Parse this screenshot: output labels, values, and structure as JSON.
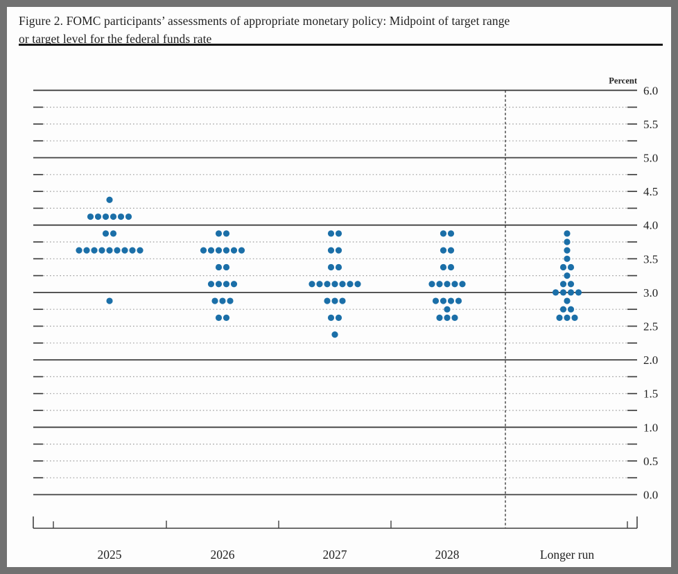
{
  "figure": {
    "title_line1": "Figure 2. FOMC participants’ assessments of appropriate monetary policy: Midpoint of target range",
    "title_line2": "or target level for the federal funds rate"
  },
  "colors": {
    "dot": "#1b6fa8",
    "solid_line": "#3f3f3f",
    "dashed_line": "#9b9b9b",
    "separator_line": "#2f2f2f",
    "text": "#1f1f1f",
    "frame": "#717171",
    "page": "#fdfdfd"
  },
  "chart_data": {
    "type": "scatter",
    "title": "Figure 2. FOMC participants’ assessments of appropriate monetary policy: Midpoint of target range or target level for the federal funds rate",
    "ylabel": "Percent",
    "ylim": [
      0.0,
      6.0
    ],
    "grid": "solid lines at each integer percent; dashed lines at each 0.25 increment; tick labels every 0.5 on right side",
    "legend_position": "none",
    "y_axis": {
      "unit": "Percent",
      "tick_labels": [
        "6.0",
        "5.5",
        "5.0",
        "4.5",
        "4.0",
        "3.5",
        "3.0",
        "2.5",
        "2.0",
        "1.5",
        "1.0",
        "0.5",
        "0.0"
      ]
    },
    "categories": [
      "2025",
      "2026",
      "2027",
      "2028",
      "Longer run"
    ],
    "series": [
      {
        "category": "2025",
        "dots": [
          {
            "rate": 4.375,
            "count": 1
          },
          {
            "rate": 4.125,
            "count": 6
          },
          {
            "rate": 3.875,
            "count": 2
          },
          {
            "rate": 3.625,
            "count": 9
          },
          {
            "rate": 2.875,
            "count": 1
          }
        ]
      },
      {
        "category": "2026",
        "dots": [
          {
            "rate": 3.875,
            "count": 2
          },
          {
            "rate": 3.625,
            "count": 6
          },
          {
            "rate": 3.375,
            "count": 2
          },
          {
            "rate": 3.125,
            "count": 4
          },
          {
            "rate": 2.875,
            "count": 3
          },
          {
            "rate": 2.625,
            "count": 2
          }
        ]
      },
      {
        "category": "2027",
        "dots": [
          {
            "rate": 3.875,
            "count": 2
          },
          {
            "rate": 3.625,
            "count": 2
          },
          {
            "rate": 3.375,
            "count": 2
          },
          {
            "rate": 3.125,
            "count": 7
          },
          {
            "rate": 2.875,
            "count": 3
          },
          {
            "rate": 2.625,
            "count": 2
          },
          {
            "rate": 2.375,
            "count": 1
          }
        ]
      },
      {
        "category": "2028",
        "dots": [
          {
            "rate": 3.875,
            "count": 2
          },
          {
            "rate": 3.625,
            "count": 2
          },
          {
            "rate": 3.375,
            "count": 2
          },
          {
            "rate": 3.125,
            "count": 5
          },
          {
            "rate": 2.875,
            "count": 4
          },
          {
            "rate": 2.75,
            "count": 1
          },
          {
            "rate": 2.625,
            "count": 3
          }
        ]
      },
      {
        "category": "Longer run",
        "dots": [
          {
            "rate": 3.875,
            "count": 1
          },
          {
            "rate": 3.75,
            "count": 1
          },
          {
            "rate": 3.625,
            "count": 1
          },
          {
            "rate": 3.5,
            "count": 1
          },
          {
            "rate": 3.375,
            "count": 2
          },
          {
            "rate": 3.25,
            "count": 1
          },
          {
            "rate": 3.125,
            "count": 2
          },
          {
            "rate": 3.0,
            "count": 4
          },
          {
            "rate": 2.875,
            "count": 1
          },
          {
            "rate": 2.75,
            "count": 2
          },
          {
            "rate": 2.625,
            "count": 3
          }
        ]
      }
    ]
  }
}
